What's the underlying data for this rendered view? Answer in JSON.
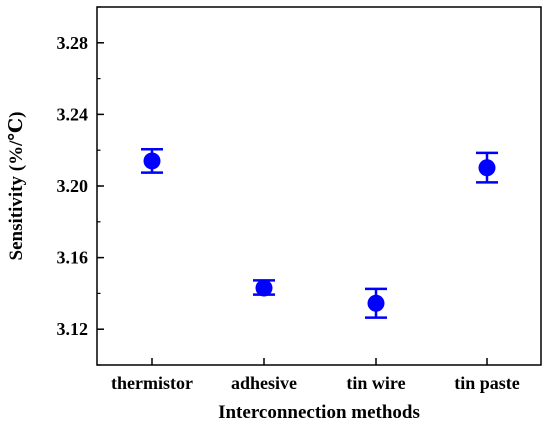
{
  "chart_data": {
    "type": "scatter",
    "title": "",
    "xlabel": "Interconnection methods",
    "ylabel": "Sensitivity (%/℃)",
    "categories": [
      "thermistor",
      "adhesive",
      "tin wire",
      "tin paste"
    ],
    "series": [
      {
        "values": [
          3.214,
          3.143,
          3.1345,
          3.2102
        ],
        "error_low": [
          3.2075,
          3.1393,
          3.1265,
          3.202
        ],
        "error_high": [
          3.2205,
          3.1473,
          3.1425,
          3.2185
        ]
      }
    ],
    "ylim": [
      3.1,
      3.3
    ],
    "yticks": [
      "3.12",
      "3.16",
      "3.20",
      "3.24",
      "3.28"
    ],
    "grid": false,
    "legend": "none",
    "marker_color": "#0000ff",
    "axis_color": "#000000"
  }
}
